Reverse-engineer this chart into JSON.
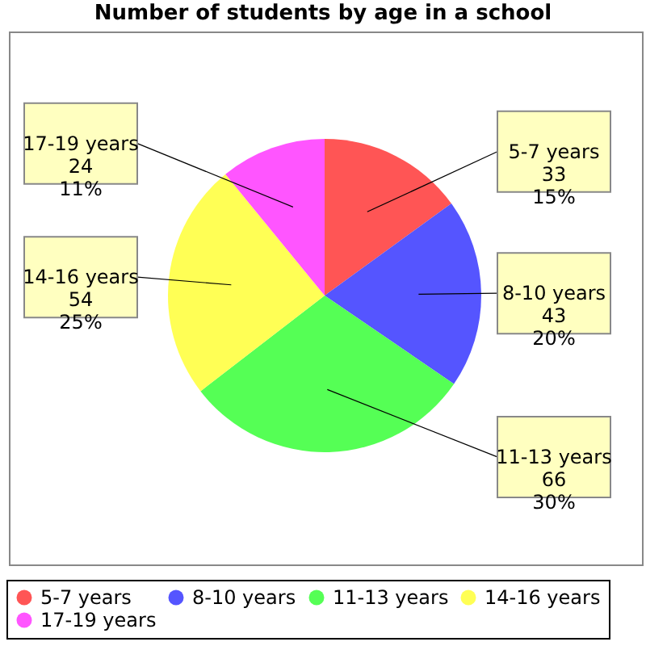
{
  "chart_data": {
    "type": "pie",
    "title": "Number of students by age in a school",
    "categories": [
      "5-7 years",
      "8-10 years",
      "11-13 years",
      "14-16 years",
      "17-19 years"
    ],
    "values": [
      33,
      43,
      66,
      54,
      24
    ],
    "colors": [
      "#ff5555",
      "#5555ff",
      "#55ff55",
      "#ffff55",
      "#ff55ff"
    ],
    "value_labels": [
      "33\n15%",
      "43\n20%",
      "66\n30%",
      "54\n25%",
      "24\n11%"
    ],
    "legend": "bottom"
  }
}
